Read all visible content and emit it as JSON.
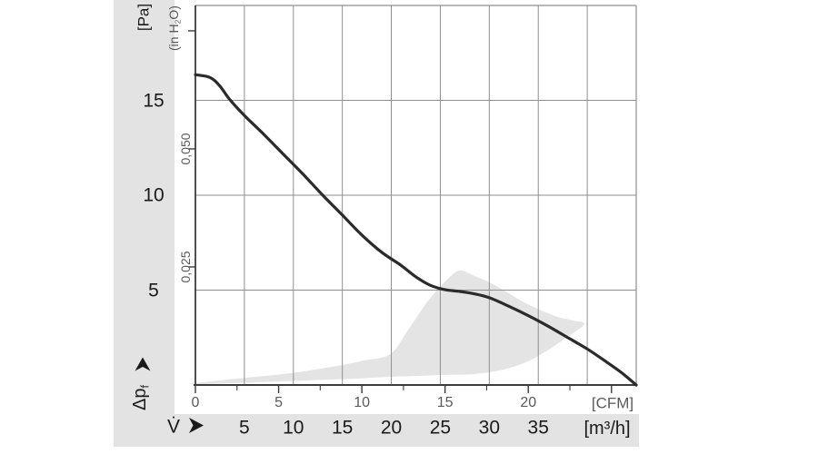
{
  "labels": {
    "pa_unit": "[Pa]",
    "inh2o_prefix": "(in H",
    "inh2o_sub": "2",
    "inh2o_suffix": "O)",
    "pressure_symbol": "Δp",
    "pressure_symbol_sub": "f",
    "flow_symbol": "V̇",
    "cfm_unit": "[CFM]",
    "m3h_unit": "[m³/h]"
  },
  "icons": {
    "pressure_axis_arrow": "up-arrow",
    "flow_axis_arrow": "right-arrow"
  },
  "colors": {
    "background": "#ffffff",
    "band": "#e3e3e3",
    "region": "#e4e4e4",
    "grid": "#8f8f8f",
    "axis": "#3c3c3c",
    "curve": "#2b2b2b",
    "text": "#1a1a1a",
    "muted_text": "#5a5a5a"
  },
  "chart_data": {
    "type": "line",
    "title": "",
    "x_axis_m3h": {
      "label": "[m³/h]",
      "range": [
        0,
        45
      ],
      "gridlines": [
        5,
        10,
        15,
        20,
        25,
        30,
        35,
        40
      ],
      "tick_labels": [
        [
          5,
          "5"
        ],
        [
          10,
          "10"
        ],
        [
          15,
          "15"
        ],
        [
          20,
          "20"
        ],
        [
          25,
          "25"
        ],
        [
          30,
          "30"
        ],
        [
          35,
          "35"
        ]
      ]
    },
    "x_axis_cfm": {
      "label": "[CFM]",
      "cfm_to_m3h": 1.699,
      "major_ticks": [
        0,
        5,
        10,
        15,
        20,
        25
      ],
      "minor_ticks": [
        2.5,
        7.5,
        12.5,
        17.5,
        22.5
      ],
      "tick_labels": [
        [
          0,
          "0"
        ],
        [
          5,
          "5"
        ],
        [
          10,
          "10"
        ],
        [
          15,
          "15"
        ],
        [
          20,
          "20"
        ]
      ]
    },
    "y_axis_pa": {
      "label": "[Pa]",
      "range": [
        0,
        20
      ],
      "gridlines": [
        5,
        10,
        15
      ],
      "tick_labels": [
        [
          5,
          "5"
        ],
        [
          10,
          "10"
        ],
        [
          15,
          "15"
        ]
      ]
    },
    "y_axis_inh2o": {
      "label": "(in H2O)",
      "inh2o_to_pa": 248.84,
      "ticks": [
        0.025,
        0.05,
        0.075
      ],
      "tick_labels": [
        [
          0.05,
          "0,050"
        ],
        [
          0.025,
          "0,025"
        ]
      ]
    },
    "grid": true,
    "series": [
      {
        "name": "pressure-vs-flow-curve",
        "points": [
          [
            0,
            16.35
          ],
          [
            1.5,
            16.2
          ],
          [
            2.5,
            15.75
          ],
          [
            3.5,
            15.05
          ],
          [
            5,
            14.2
          ],
          [
            7,
            13.2
          ],
          [
            9,
            12.15
          ],
          [
            11,
            11.1
          ],
          [
            13,
            10.0
          ],
          [
            15,
            8.95
          ],
          [
            17,
            7.9
          ],
          [
            19,
            7.0
          ],
          [
            21,
            6.3
          ],
          [
            22.5,
            5.7
          ],
          [
            24,
            5.25
          ],
          [
            25.5,
            5.02
          ],
          [
            27,
            4.93
          ],
          [
            28.5,
            4.8
          ],
          [
            30,
            4.6
          ],
          [
            32,
            4.15
          ],
          [
            34,
            3.65
          ],
          [
            36,
            3.1
          ],
          [
            38,
            2.5
          ],
          [
            40,
            1.9
          ],
          [
            42,
            1.2
          ],
          [
            43.5,
            0.65
          ],
          [
            45,
            0
          ]
        ]
      }
    ],
    "operating_region": {
      "name": "recommended-operating-range",
      "points_m3h_pa": [
        [
          0,
          0.05
        ],
        [
          5.1,
          0.12
        ],
        [
          8.8,
          0.19
        ],
        [
          12.5,
          0.26
        ],
        [
          16.2,
          0.33
        ],
        [
          19.9,
          0.43
        ],
        [
          22.7,
          0.48
        ],
        [
          25.5,
          0.53
        ],
        [
          28.3,
          0.57
        ],
        [
          30.6,
          0.72
        ],
        [
          32.5,
          0.96
        ],
        [
          34.3,
          1.34
        ],
        [
          36.2,
          1.91
        ],
        [
          38.0,
          2.54
        ],
        [
          39.7,
          3.21
        ],
        [
          38.5,
          3.4
        ],
        [
          36.7,
          3.64
        ],
        [
          33.9,
          4.26
        ],
        [
          32.0,
          4.83
        ],
        [
          30.2,
          5.36
        ],
        [
          28.3,
          5.79
        ],
        [
          26.9,
          6.03
        ],
        [
          25.5,
          5.45
        ],
        [
          23.7,
          4.4
        ],
        [
          21.8,
          2.97
        ],
        [
          19.9,
          1.63
        ],
        [
          17.2,
          1.29
        ],
        [
          14.4,
          1.0
        ],
        [
          9.7,
          0.62
        ],
        [
          5.1,
          0.38
        ],
        [
          0,
          0.1
        ]
      ]
    }
  }
}
